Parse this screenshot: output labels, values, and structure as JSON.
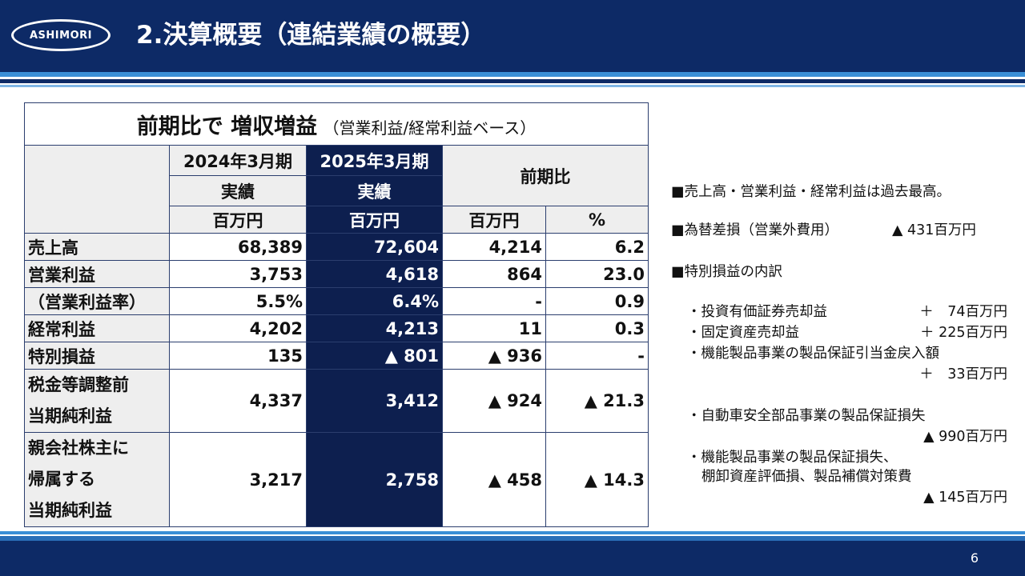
{
  "header": {
    "logo_text": "ASHIMORI",
    "title": "2.決算概要（連結業績の概要）",
    "colors": {
      "navy": "#0d2a66",
      "light_blue": "#3a8fd6",
      "accent_navy": "#0d1f4f"
    }
  },
  "table": {
    "heading_main": "前期比で 増収増益",
    "heading_sub": "（営業利益/経常利益ベース）",
    "col_prev_line1": "2024年3月期",
    "col_prev_line2": "実績",
    "col_curr_line1": "2025年3月期",
    "col_curr_line2": "実績",
    "col_diff": "前期比",
    "unit_prev": "百万円",
    "unit_curr": "百万円",
    "unit_diff": "百万円",
    "unit_pct": "%",
    "rows": [
      {
        "label": "売上高",
        "prev": "68,389",
        "curr": "72,604",
        "diff": "4,214",
        "pct": "6.2"
      },
      {
        "label": "営業利益",
        "prev": "3,753",
        "curr": "4,618",
        "diff": "864",
        "pct": "23.0"
      },
      {
        "label": "（営業利益率）",
        "prev": "5.5%",
        "curr": "6.4%",
        "diff": "-",
        "pct": "0.9"
      },
      {
        "label": "経常利益",
        "prev": "4,202",
        "curr": "4,213",
        "diff": "11",
        "pct": "0.3"
      },
      {
        "label": "特別損益",
        "prev": "135",
        "curr": "▲ 801",
        "diff": "▲ 936",
        "pct": "-"
      },
      {
        "label_line1": "税金等調整前",
        "label_line2": "当期純利益",
        "prev": "4,337",
        "curr": "3,412",
        "diff": "▲ 924",
        "pct": "▲ 21.3"
      },
      {
        "label_line1": "親会社株主に",
        "label_line2": "帰属する",
        "label_line3": "当期純利益",
        "prev": "3,217",
        "curr": "2,758",
        "diff": "▲ 458",
        "pct": "▲ 14.3"
      }
    ]
  },
  "notes": {
    "n1": "■売上高・営業利益・経常利益は過去最高。",
    "n2_label": "■為替差損（営業外費用）",
    "n2_amount": "▲ 431百万円",
    "n3": "■特別損益の内訳",
    "i1_label": "・投資有価証券売却益",
    "i1_amount": "＋　74百万円",
    "i2_label": "・固定資産売却益",
    "i2_amount": "＋ 225百万円",
    "i3_label": "・機能製品事業の製品保証引当金戻入額",
    "i3_amount": "＋　33百万円",
    "i4_label": "・自動車安全部品事業の製品保証損失",
    "i4_amount": "▲ 990百万円",
    "i5_label_line1": "・機能製品事業の製品保証損失、",
    "i5_label_line2": "棚卸資産評価損、製品補償対策費",
    "i5_amount": "▲ 145百万円"
  },
  "footer": {
    "page_number": "6"
  }
}
